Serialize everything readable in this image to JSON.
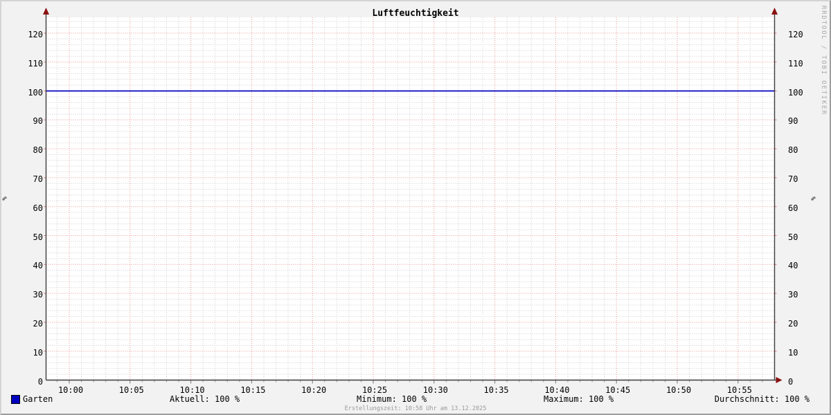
{
  "title": "Luftfeuchtigkeit",
  "watermark": "RRDTOOL / TOBI OETIKER",
  "footer": {
    "text": "Erstellungszeit: 10:58 Uhr am 13.12.2025"
  },
  "axes": {
    "unit_left": "%",
    "unit_right": "%"
  },
  "legend": {
    "series": {
      "label": "Garten",
      "color": "#0000c0"
    },
    "stats": {
      "aktuell": "Aktuell: 100 %",
      "minimum": "Minimum: 100 %",
      "maximum": "Maximum: 100 %",
      "durchschnitt": "Durchschnitt: 100 %"
    }
  },
  "chart_data": {
    "type": "line",
    "title": "Luftfeuchtigkeit",
    "ylabel": "%",
    "ylim": [
      0,
      125
    ],
    "y_ticks": [
      0,
      10,
      20,
      30,
      40,
      50,
      60,
      70,
      80,
      90,
      100,
      110,
      120
    ],
    "x_ticks": [
      "10:00",
      "10:05",
      "10:10",
      "10:15",
      "10:20",
      "10:25",
      "10:30",
      "10:35",
      "10:40",
      "10:45",
      "10:50",
      "10:55"
    ],
    "minutes_per_major_gridline": 5,
    "series": [
      {
        "name": "Garten",
        "color": "#0000c0",
        "constant_value": 100
      }
    ],
    "stats": {
      "aktuell": "100 %",
      "minimum": "100 %",
      "maximum": "100 %",
      "durchschnitt": "100 %"
    },
    "grid": {
      "major_color": "#e05050",
      "minor_color": "#cdcdcd",
      "style": "dotted"
    },
    "legend_position": "bottom"
  }
}
